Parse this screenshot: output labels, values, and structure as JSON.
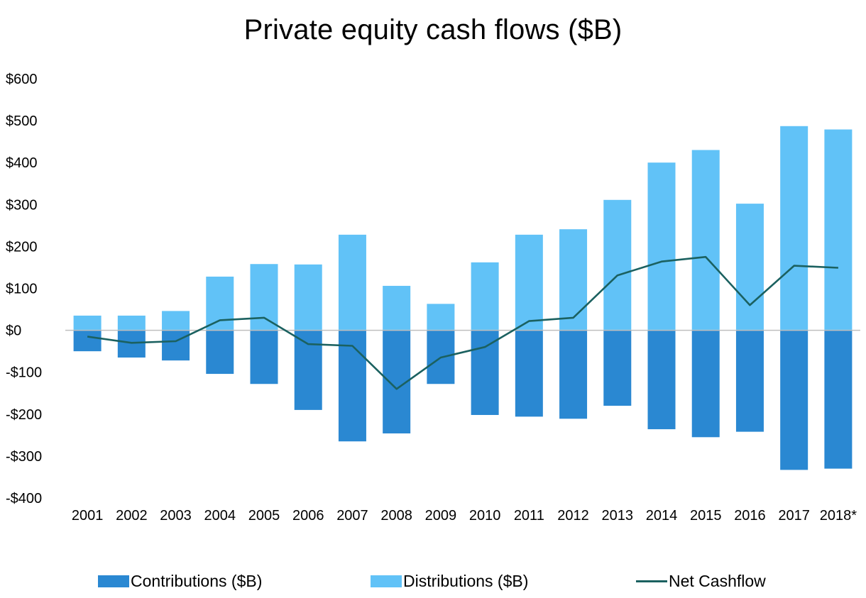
{
  "chart_data": {
    "type": "bar",
    "title": "Private equity cash flows ($B)",
    "xlabel": "",
    "ylabel": "",
    "categories": [
      "2001",
      "2002",
      "2003",
      "2004",
      "2005",
      "2006",
      "2007",
      "2008",
      "2009",
      "2010",
      "2011",
      "2012",
      "2013",
      "2014",
      "2015",
      "2016",
      "2017",
      "2018*"
    ],
    "y_ticks": [
      600,
      500,
      400,
      300,
      200,
      100,
      0,
      -100,
      -200,
      -300,
      -400
    ],
    "y_tick_labels": [
      "$600",
      "$500",
      "$400",
      "$300",
      "$200",
      "$100",
      "$0",
      "-$100",
      "-$200",
      "-$300",
      "-$400"
    ],
    "ylim": [
      -400,
      600
    ],
    "grid": false,
    "legend_position": "bottom",
    "series": [
      {
        "name": "Contributions ($B)",
        "kind": "bar",
        "color": "#2A88D2",
        "values": [
          -50,
          -65,
          -72,
          -104,
          -128,
          -190,
          -265,
          -246,
          -128,
          -202,
          -206,
          -211,
          -180,
          -236,
          -255,
          -242,
          -333,
          -330
        ]
      },
      {
        "name": "Distributions ($B)",
        "kind": "bar",
        "color": "#61C2F7",
        "values": [
          35,
          35,
          46,
          128,
          158,
          157,
          228,
          106,
          63,
          162,
          228,
          241,
          311,
          400,
          430,
          302,
          487,
          479
        ]
      },
      {
        "name": "Net Cashflow",
        "kind": "line",
        "color": "#1B6160",
        "values": [
          -15,
          -30,
          -26,
          24,
          30,
          -33,
          -37,
          -140,
          -65,
          -40,
          22,
          30,
          131,
          164,
          175,
          60,
          154,
          149
        ]
      }
    ]
  }
}
